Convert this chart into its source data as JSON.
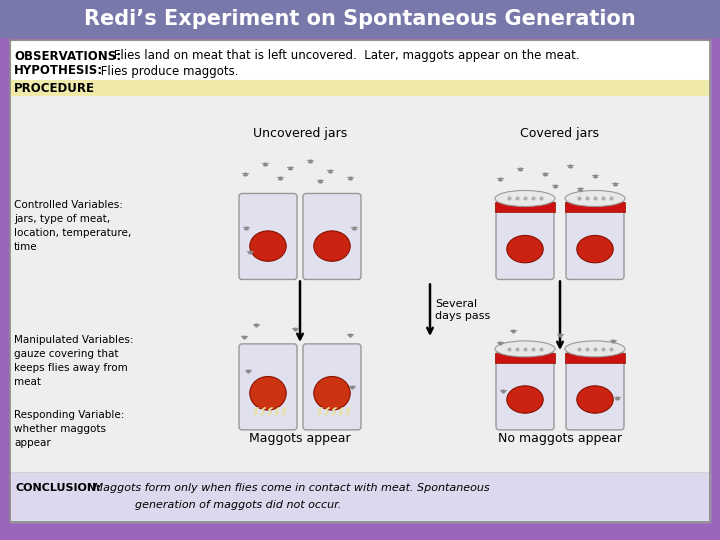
{
  "title": "Redi’s Experiment on Spontaneous Generation",
  "title_bg": "#7878aa",
  "title_color": "white",
  "title_fontsize": 15,
  "bottom_bg": "#9966bb",
  "obs_bold": "OBSERVATIONS:",
  "obs_text": " Flies land on meat that is left uncovered.  Later, maggots appear on the meat.",
  "hyp_bold": "HYPOTHESIS:",
  "hyp_text": " Flies produce maggots.",
  "procedure_label": "PROCEDURE",
  "procedure_bg": "#f0eaaa",
  "content_bg": "#f5f5f5",
  "uncovered_label": "Uncovered jars",
  "covered_label": "Covered jars",
  "several_days": "Several\ndays pass",
  "maggots_appear": "Maggots appear",
  "no_maggots": "No maggots appear",
  "controlled_text": "Controlled Variables:\njars, type of meat,\nlocation, temperature,\ntime",
  "manipulated_text": "Manipulated Variables:\ngauze covering that\nkeeps flies away from\nmeat",
  "responding_text": "Responding Variable:\nwhether maggots\nappear",
  "conclusion_bold": "CONCLUSION:",
  "conclusion_text1": " Maggots form only when flies come in contact with meat. Spontaneous",
  "conclusion_text2": "generation of maggots did not occur.",
  "white": "#ffffff",
  "light_gray": "#eeeeee",
  "dark_gray": "#cccccc",
  "black": "#000000",
  "meat_color": "#cc2211",
  "jar_color": "#e0e0ee",
  "jar_edge": "#999999",
  "red_band": "#cc1111",
  "lid_color": "#e8e8e8",
  "fly_color": "#888888",
  "conclusion_bg": "#ddd8ee"
}
